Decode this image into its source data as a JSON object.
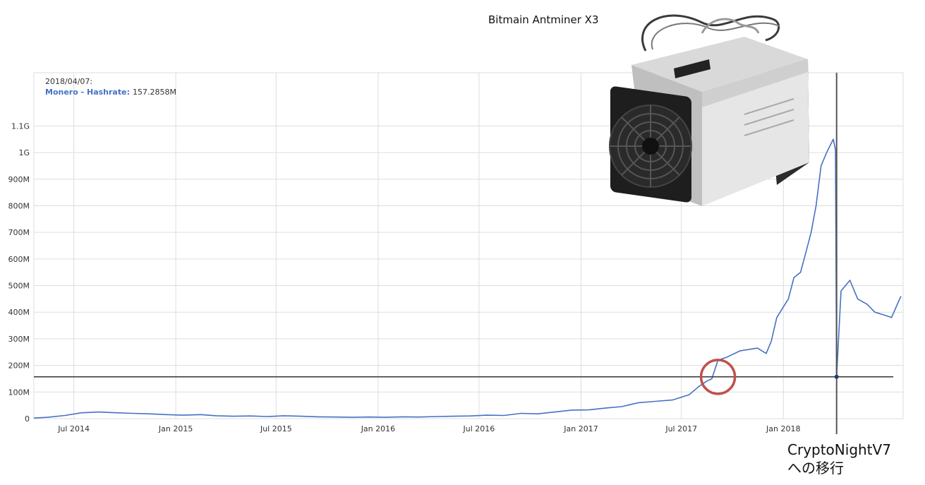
{
  "chart_data": {
    "type": "line",
    "title": "",
    "xlabel": "",
    "ylabel": "",
    "x_tick_labels": [
      "Jul 2014",
      "Jan 2015",
      "Jul 2015",
      "Jan 2016",
      "Jul 2016",
      "Jan 2017",
      "Jul 2017",
      "Jan 2018"
    ],
    "y_tick_labels": [
      "0",
      "100M",
      "200M",
      "300M",
      "400M",
      "500M",
      "600M",
      "700M",
      "800M",
      "900M",
      "1G",
      "1.1G"
    ],
    "y_ticks": [
      0,
      100,
      200,
      300,
      400,
      500,
      600,
      700,
      800,
      900,
      1000,
      1100
    ],
    "ylim": [
      0,
      1300
    ],
    "xlim": [
      "2014-04-20",
      "2018-08-05"
    ],
    "x_ticks": [
      "2014-07-01",
      "2015-01-01",
      "2015-07-01",
      "2016-01-01",
      "2016-07-01",
      "2017-01-01",
      "2017-07-01",
      "2018-01-01"
    ],
    "grid": true,
    "series": [
      {
        "name": "Monero - Hashrate",
        "color": "#4472c4",
        "x": [
          "2014-04-20",
          "2014-05-15",
          "2014-06-15",
          "2014-07-15",
          "2014-08-15",
          "2014-09-15",
          "2014-10-15",
          "2014-11-15",
          "2014-12-15",
          "2015-01-15",
          "2015-02-15",
          "2015-03-15",
          "2015-04-15",
          "2015-05-15",
          "2015-06-15",
          "2015-07-15",
          "2015-08-15",
          "2015-09-15",
          "2015-10-15",
          "2015-11-15",
          "2015-12-15",
          "2016-01-15",
          "2016-02-15",
          "2016-03-15",
          "2016-04-15",
          "2016-05-15",
          "2016-06-15",
          "2016-07-15",
          "2016-08-15",
          "2016-09-15",
          "2016-10-15",
          "2016-11-15",
          "2016-12-15",
          "2017-01-15",
          "2017-02-15",
          "2017-03-15",
          "2017-04-15",
          "2017-05-15",
          "2017-06-15",
          "2017-07-15",
          "2017-08-01",
          "2017-08-15",
          "2017-08-25",
          "2017-09-05",
          "2017-09-20",
          "2017-10-15",
          "2017-11-15",
          "2017-12-01",
          "2017-12-10",
          "2017-12-20",
          "2018-01-01",
          "2018-01-10",
          "2018-01-20",
          "2018-02-01",
          "2018-02-10",
          "2018-02-20",
          "2018-03-01",
          "2018-03-10",
          "2018-03-20",
          "2018-04-01",
          "2018-04-05",
          "2018-04-07",
          "2018-04-15",
          "2018-05-01",
          "2018-05-15",
          "2018-06-01",
          "2018-06-15",
          "2018-07-01",
          "2018-07-15",
          "2018-08-01"
        ],
        "values": [
          2,
          5,
          12,
          22,
          25,
          22,
          20,
          18,
          15,
          13,
          15,
          11,
          9,
          10,
          8,
          11,
          9,
          7,
          6,
          5,
          6,
          5,
          7,
          6,
          8,
          9,
          10,
          13,
          12,
          20,
          18,
          25,
          32,
          33,
          40,
          45,
          60,
          65,
          70,
          90,
          120,
          140,
          150,
          220,
          230,
          255,
          265,
          245,
          290,
          380,
          420,
          450,
          530,
          550,
          620,
          700,
          800,
          950,
          1000,
          1050,
          1010,
          157,
          480,
          520,
          450,
          430,
          400,
          390,
          380,
          460
        ]
      }
    ],
    "hlines": [
      157.2858
    ],
    "vlines": [
      "2018-04-07"
    ],
    "legend": "none"
  },
  "tooltip": {
    "date": "2018/04/07:",
    "series_label": "Monero - Hashrate:",
    "value": "157.2858M"
  },
  "annotations": {
    "miner_label": "Bitmain Antminer X3",
    "migration_line1": "CryptoNightV7",
    "migration_line2": "への移行"
  },
  "colors": {
    "series": "#4472c4",
    "circle": "#c0504d",
    "reference_line": "#333333",
    "grid": "#dddddd"
  }
}
